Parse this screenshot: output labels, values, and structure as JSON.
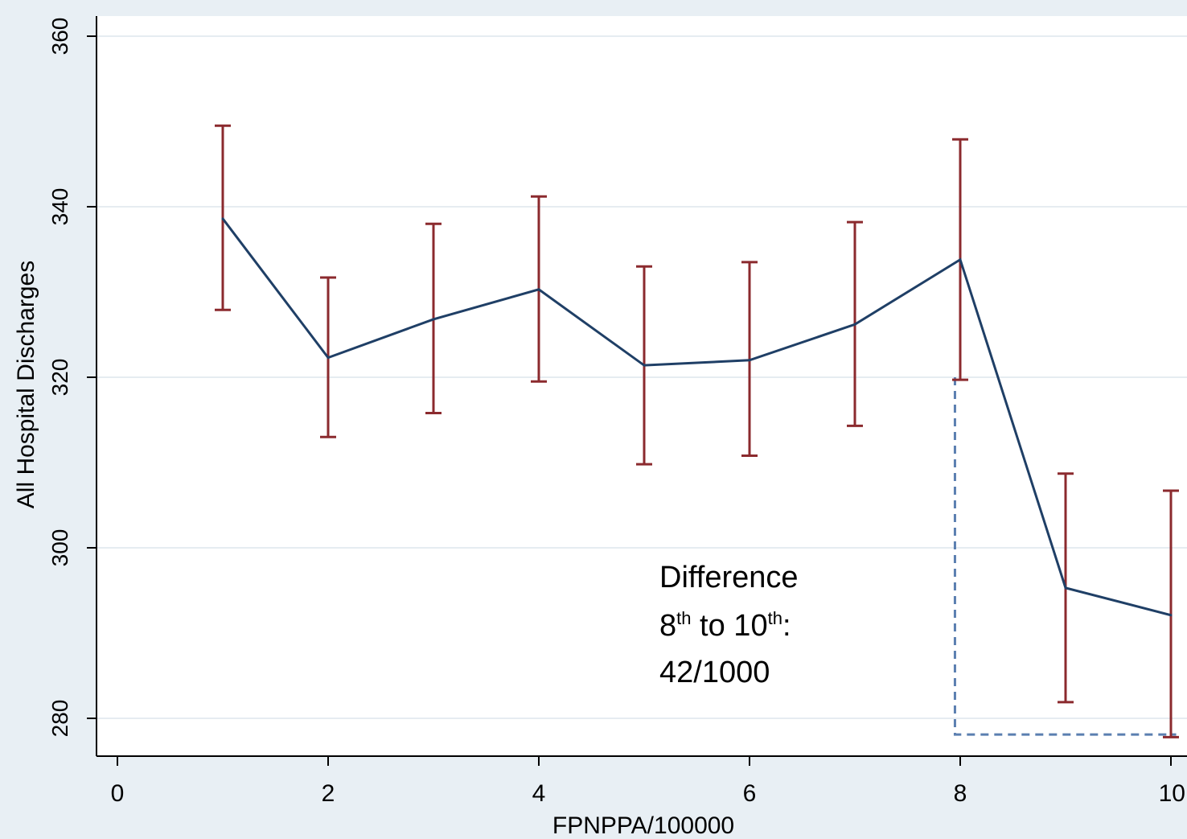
{
  "chart_data": {
    "type": "line",
    "title": "",
    "xlabel": "FPNPPA/100000",
    "ylabel": "All Hospital Discharges",
    "xlim": [
      0,
      10
    ],
    "ylim": [
      275,
      362
    ],
    "x_ticks": [
      "0",
      "2",
      "4",
      "6",
      "8",
      "10"
    ],
    "y_ticks": [
      "280",
      "300",
      "320",
      "340",
      "360"
    ],
    "grid": true,
    "legend": "none",
    "series": [
      {
        "x": [
          1,
          2,
          3,
          4,
          5,
          6,
          7,
          8,
          9,
          10
        ],
        "y": [
          338.6,
          322.3,
          326.8,
          330.3,
          321.4,
          322.0,
          326.2,
          333.8,
          295.3,
          292.1
        ],
        "ci_low": [
          327.9,
          313.0,
          315.8,
          319.5,
          309.8,
          310.8,
          314.3,
          319.7,
          281.9,
          277.8
        ],
        "ci_high": [
          349.5,
          331.7,
          338.0,
          341.2,
          333.0,
          333.5,
          338.2,
          347.9,
          308.7,
          306.7
        ]
      }
    ],
    "annotation": {
      "line1": "Difference",
      "line2_num1": "8",
      "line2_sup1": "th",
      "line2_mid": " to 10",
      "line2_sup2": "th",
      "line2_end": ":",
      "line3": "42/1000"
    },
    "colors": {
      "line": "#1f3f66",
      "error_bars": "#8b2a2e",
      "dashed_box": "#5b7fb0",
      "grid": "#e6ecf1",
      "plot_bg": "#ffffff",
      "outer_bg": "#e8eff4"
    }
  }
}
